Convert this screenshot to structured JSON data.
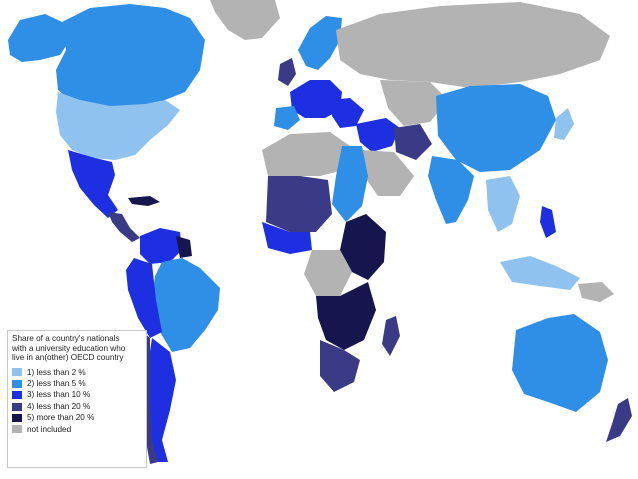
{
  "map": {
    "colors": {
      "ocean": "#ffffff",
      "lt2": "#8fc2ee",
      "lt5": "#2f8fe6",
      "lt10": "#1d2fe0",
      "lt20": "#3a3a86",
      "gt20": "#17154e",
      "none": "#b3b3b3"
    }
  },
  "legend": {
    "title": "Share of a country's nationals\nwith a university education who\nlive in an(other) OECD country",
    "items": [
      {
        "label": "1) less than 2 %",
        "color": "#8fc2ee"
      },
      {
        "label": "2) less than 5 %",
        "color": "#2f8fe6"
      },
      {
        "label": "3) less than 10 %",
        "color": "#1d2fe0"
      },
      {
        "label": "4) less than 20 %",
        "color": "#3a3a86"
      },
      {
        "label": "5) more than 20 %",
        "color": "#17154e"
      },
      {
        "label": "not included",
        "color": "#b3b3b3"
      }
    ]
  }
}
